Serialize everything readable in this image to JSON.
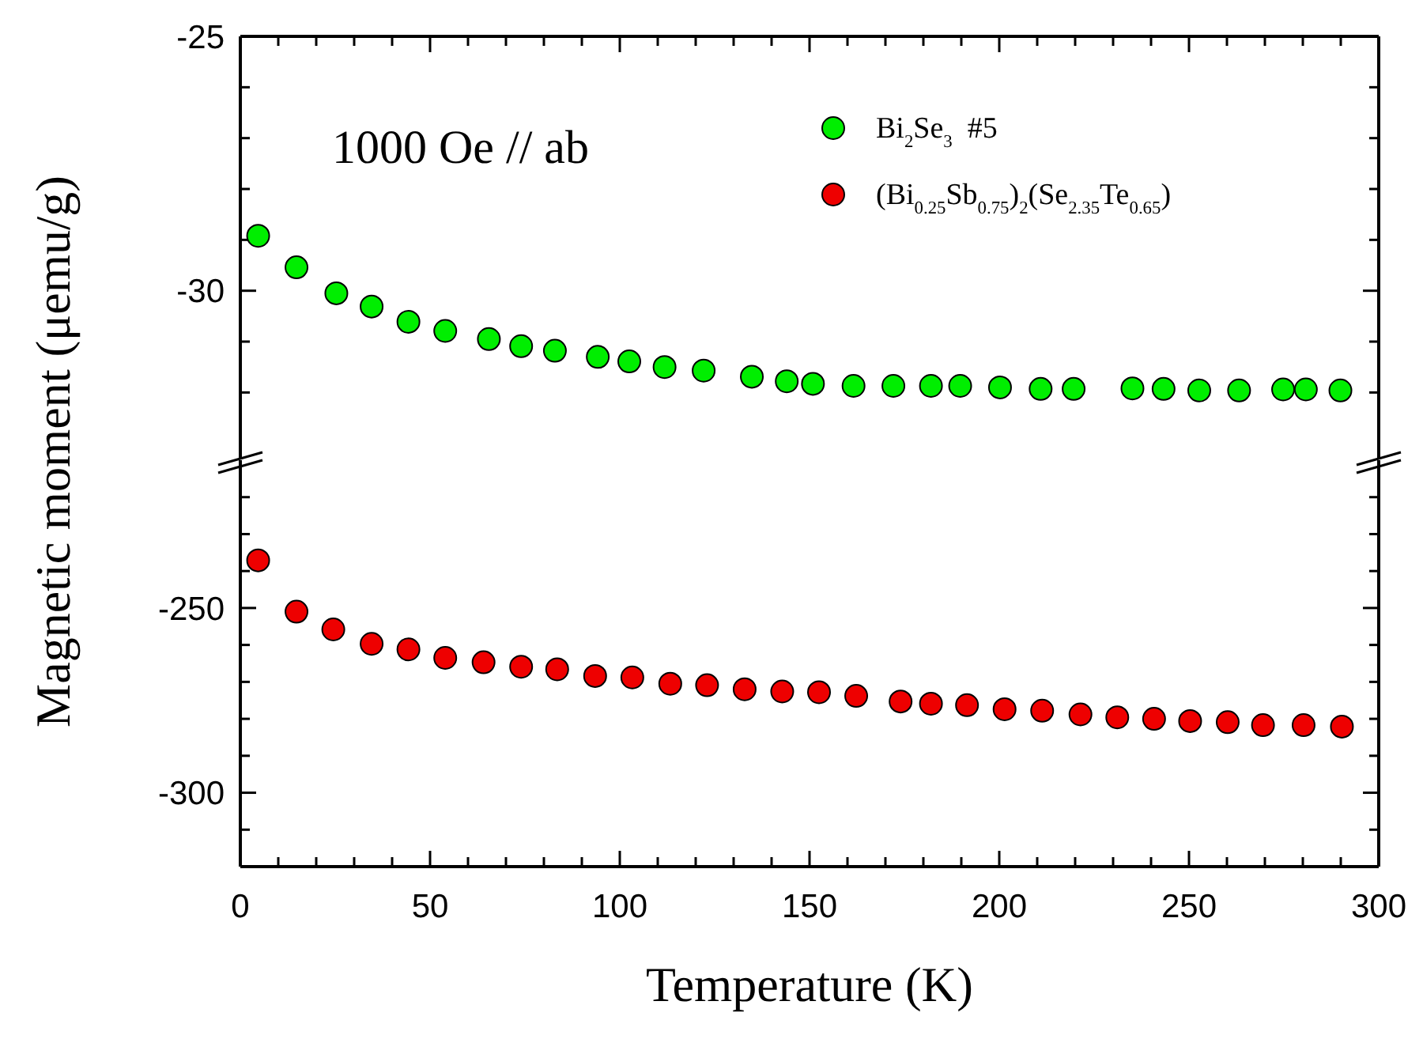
{
  "chart_data": [
    {
      "type": "scatter",
      "marker": "circle",
      "legend": "top right",
      "ylabel": "Magnetic moment (μemu/g)",
      "annotations": [
        "1000 Oe // ab"
      ],
      "tick_labels": "y",
      "xlim": [
        0,
        300
      ],
      "xticks": [
        0,
        {
          "value": 10,
          "label": null
        },
        {
          "value": 20,
          "label": null
        },
        {
          "value": 30,
          "label": null
        },
        {
          "value": 40,
          "label": null
        },
        50,
        {
          "value": 60,
          "label": null
        },
        {
          "value": 70,
          "label": null
        },
        {
          "value": 80,
          "label": null
        },
        {
          "value": 90,
          "label": null
        },
        100,
        {
          "value": 110,
          "label": null
        },
        {
          "value": 120,
          "label": null
        },
        {
          "value": 130,
          "label": null
        },
        {
          "value": 140,
          "label": null
        },
        150,
        {
          "value": 160,
          "label": null
        },
        {
          "value": 170,
          "label": null
        },
        {
          "value": 180,
          "label": null
        },
        {
          "value": 190,
          "label": null
        },
        200,
        {
          "value": 210,
          "label": null
        },
        {
          "value": 220,
          "label": null
        },
        {
          "value": 230,
          "label": null
        },
        {
          "value": 240,
          "label": null
        },
        250,
        {
          "value": 260,
          "label": null
        },
        {
          "value": 270,
          "label": null
        },
        {
          "value": 280,
          "label": null
        },
        {
          "value": 290,
          "label": null
        },
        300
      ],
      "ylim": [
        -33.3,
        -25
      ],
      "yticks": [
        -25,
        {
          "value": -26,
          "label": null
        },
        {
          "value": -27,
          "label": null
        },
        {
          "value": -28,
          "label": null
        },
        {
          "value": -29,
          "label": null
        },
        -30,
        {
          "value": -31,
          "label": null
        },
        {
          "value": -32,
          "label": null
        }
      ],
      "series": [
        {
          "name": "Bi$_{2}$Se$_{3}$  #5",
          "color": "#00ee00",
          "x": [
            4.7,
            14.8,
            25.3,
            34.6,
            44.3,
            54,
            65.5,
            74,
            82.9,
            94.2,
            102.5,
            111.8,
            122.1,
            134.8,
            144,
            150.9,
            161.6,
            172.1,
            182,
            189.7,
            200.2,
            210.9,
            219.6,
            235.1,
            243.3,
            252.7,
            263.2,
            274.8,
            280.8,
            289.9
          ],
          "values": [
            -28.92,
            -29.54,
            -30.05,
            -30.31,
            -30.61,
            -30.79,
            -30.95,
            -31.09,
            -31.18,
            -31.3,
            -31.39,
            -31.5,
            -31.57,
            -31.69,
            -31.78,
            -31.83,
            -31.87,
            -31.87,
            -31.87,
            -31.87,
            -31.9,
            -31.93,
            -31.93,
            -31.92,
            -31.93,
            -31.96,
            -31.96,
            -31.94,
            -31.94,
            -31.96
          ]
        }
      ]
    },
    {
      "type": "scatter",
      "marker": "circle",
      "xlabel": "Temperature (K)",
      "xlim": [
        0,
        300
      ],
      "xticks": [
        0,
        {
          "value": 10,
          "label": null
        },
        {
          "value": 20,
          "label": null
        },
        {
          "value": 30,
          "label": null
        },
        {
          "value": 40,
          "label": null
        },
        50,
        {
          "value": 60,
          "label": null
        },
        {
          "value": 70,
          "label": null
        },
        {
          "value": 80,
          "label": null
        },
        {
          "value": 90,
          "label": null
        },
        100,
        {
          "value": 110,
          "label": null
        },
        {
          "value": 120,
          "label": null
        },
        {
          "value": 130,
          "label": null
        },
        {
          "value": 140,
          "label": null
        },
        150,
        {
          "value": 160,
          "label": null
        },
        {
          "value": 170,
          "label": null
        },
        {
          "value": 180,
          "label": null
        },
        {
          "value": 190,
          "label": null
        },
        200,
        {
          "value": 210,
          "label": null
        },
        {
          "value": 220,
          "label": null
        },
        {
          "value": 230,
          "label": null
        },
        {
          "value": 240,
          "label": null
        },
        250,
        {
          "value": 260,
          "label": null
        },
        {
          "value": 270,
          "label": null
        },
        {
          "value": 280,
          "label": null
        },
        {
          "value": 290,
          "label": null
        },
        300
      ],
      "ylim": [
        -320,
        -210
      ],
      "yticks": [
        {
          "value": -220,
          "label": null
        },
        {
          "value": -230,
          "label": null
        },
        {
          "value": -240,
          "label": null
        },
        -250,
        {
          "value": -260,
          "label": null
        },
        {
          "value": -270,
          "label": null
        },
        {
          "value": -280,
          "label": null
        },
        {
          "value": -290,
          "label": null
        },
        -300,
        {
          "value": -310,
          "label": null
        }
      ],
      "series": [
        {
          "name": "(Bi$_{0.25}$Sb$_{0.75}$)$_{2}$(Se$_{2.35}$Te$_{0.65}$)",
          "color": "#ee0000",
          "x": [
            4.7,
            14.8,
            24.5,
            34.6,
            44.3,
            54,
            64.1,
            74,
            83.5,
            93.5,
            103.3,
            113.3,
            123,
            132.9,
            142.8,
            152.5,
            162.3,
            174,
            182,
            191.5,
            201.4,
            211.3,
            221.4,
            231.1,
            240.8,
            250.3,
            260.2,
            269.5,
            280.2,
            290.3
          ],
          "values": [
            -237.1,
            -251,
            -255.8,
            -259.7,
            -261.2,
            -263.5,
            -264.7,
            -265.9,
            -266.6,
            -268.4,
            -268.8,
            -270.5,
            -270.9,
            -272,
            -272.6,
            -272.8,
            -273.8,
            -275.3,
            -275.9,
            -276.3,
            -277.4,
            -277.8,
            -278.8,
            -279.6,
            -280,
            -280.6,
            -280.9,
            -281.7,
            -281.7,
            -282.1
          ]
        }
      ]
    }
  ]
}
